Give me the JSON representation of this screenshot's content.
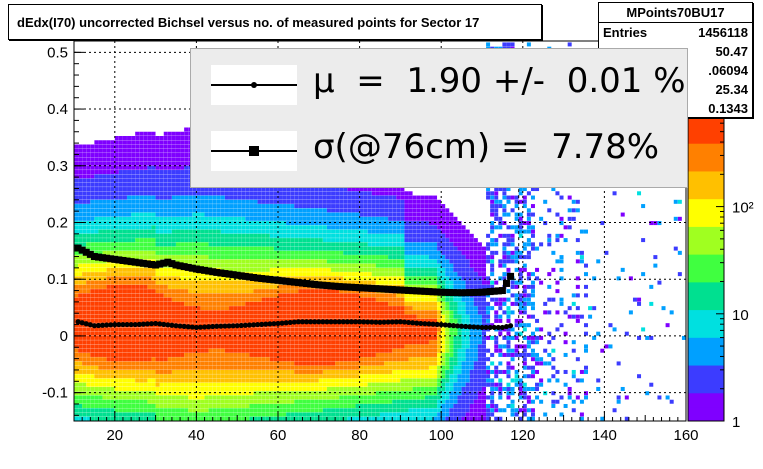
{
  "title": "dEdx(I70) uncorrected Bichsel versus no. of measured points for Sector 17",
  "stats": {
    "name": "MPoints70BU17",
    "rows": [
      {
        "key": "Entries",
        "value": "1456118"
      },
      {
        "key": "",
        "value": "50.47"
      },
      {
        "key": "",
        "value": ".06094"
      },
      {
        "key": "",
        "value": "25.34"
      },
      {
        "key": "",
        "value": "0.1343"
      }
    ]
  },
  "legend": {
    "entries": [
      {
        "marker": "circle",
        "text": "μ  =  1.90 +/-  0.01 %"
      },
      {
        "marker": "square",
        "text": "σ(@76cm) =  7.78%"
      }
    ]
  },
  "colors": {
    "frame": "#000000",
    "grid": "#000000",
    "legend_bg": "#ececec",
    "palette": [
      "#7f00ff",
      "#3c3cff",
      "#00a0ff",
      "#00e0e0",
      "#00e090",
      "#40ff40",
      "#a0ff20",
      "#ffff00",
      "#ffc000",
      "#ff8000",
      "#ff4000"
    ]
  },
  "chart_data": {
    "type": "heatmap",
    "title": "dEdx(I70) uncorrected Bichsel versus no. of measured points for Sector 17",
    "xlabel": "",
    "ylabel": "",
    "xlim": [
      10,
      160
    ],
    "ylim": [
      -0.15,
      0.52
    ],
    "x_ticks": [
      20,
      40,
      60,
      80,
      100,
      120,
      140,
      160
    ],
    "y_ticks": [
      -0.1,
      0,
      0.1,
      0.2,
      0.3,
      0.4,
      0.5
    ],
    "y_tick_labels": [
      "-0.1",
      "0",
      "0.1",
      "0.2",
      "0.3",
      "0.4",
      "0.5"
    ],
    "z_scale": "log",
    "z_ticks": [
      1,
      10,
      100
    ],
    "z_tick_labels": [
      "1",
      "10",
      "10²"
    ],
    "grid": true,
    "dashed_marker_x": 119,
    "series": [
      {
        "name": "mean",
        "marker": "circle",
        "x": [
          11,
          15,
          20,
          25,
          30,
          35,
          40,
          45,
          50,
          55,
          60,
          65,
          70,
          75,
          80,
          85,
          90,
          95,
          100,
          105,
          110,
          115,
          117
        ],
        "y": [
          0.025,
          0.018,
          0.02,
          0.02,
          0.022,
          0.018,
          0.015,
          0.017,
          0.018,
          0.02,
          0.022,
          0.025,
          0.025,
          0.025,
          0.025,
          0.024,
          0.025,
          0.022,
          0.02,
          0.017,
          0.015,
          0.015,
          0.018
        ]
      },
      {
        "name": "sigma",
        "marker": "square",
        "x": [
          11,
          15,
          20,
          25,
          30,
          33,
          35,
          40,
          45,
          50,
          55,
          60,
          65,
          70,
          75,
          80,
          85,
          90,
          95,
          100,
          105,
          110,
          115,
          117
        ],
        "y": [
          0.155,
          0.14,
          0.135,
          0.13,
          0.125,
          0.13,
          0.125,
          0.118,
          0.112,
          0.107,
          0.102,
          0.098,
          0.094,
          0.09,
          0.087,
          0.085,
          0.083,
          0.081,
          0.079,
          0.077,
          0.076,
          0.077,
          0.08,
          0.105
        ]
      }
    ]
  }
}
